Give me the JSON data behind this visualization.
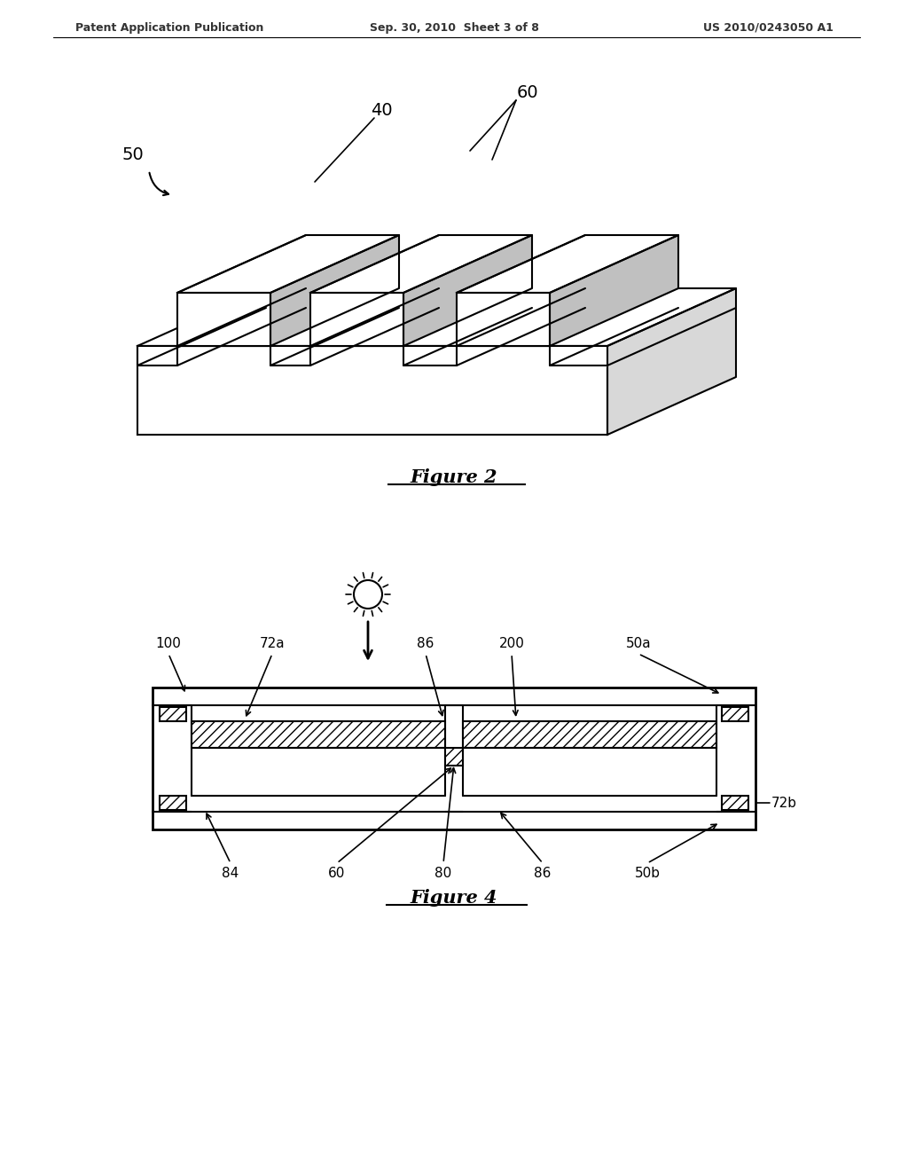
{
  "background_color": "#ffffff",
  "header_left": "Patent Application Publication",
  "header_center": "Sep. 30, 2010  Sheet 3 of 8",
  "header_right": "US 2010/0243050 A1",
  "fig2_title": "Figure 2",
  "fig4_title": "Figure 4",
  "text_color": "#000000",
  "line_color": "#000000",
  "label_50_fig2": "50",
  "label_40": "40",
  "label_60_fig2": "60",
  "label_100": "100",
  "label_72a": "72a",
  "label_86a": "86",
  "label_200": "200",
  "label_50a": "50a",
  "label_72b": "72b",
  "label_84": "84",
  "label_60_fig4": "60",
  "label_80": "80",
  "label_86b": "86",
  "label_50b": "50b"
}
